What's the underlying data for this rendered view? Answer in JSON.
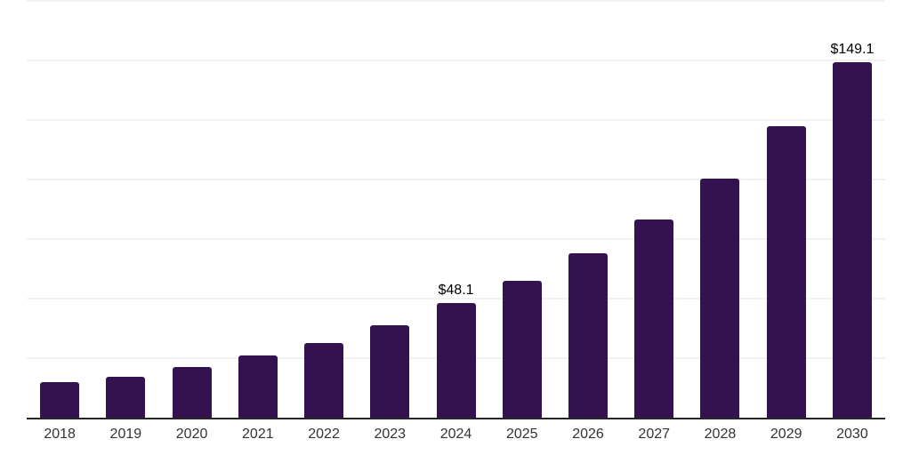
{
  "chart_data": {
    "type": "bar",
    "title": "",
    "xlabel": "",
    "ylabel": "",
    "categories": [
      "2018",
      "2019",
      "2020",
      "2021",
      "2022",
      "2023",
      "2024",
      "2025",
      "2026",
      "2027",
      "2028",
      "2029",
      "2030"
    ],
    "values": [
      14.9,
      17.3,
      21.3,
      26.1,
      31.4,
      38.9,
      48.1,
      57.5,
      69.1,
      83.2,
      100.4,
      122.4,
      149.1
    ],
    "data_labels": [
      "",
      "",
      "",
      "",
      "",
      "",
      "$48.1",
      "",
      "",
      "",
      "",
      "",
      "$149.1"
    ],
    "ylim": [
      0,
      175
    ],
    "gridline_step": 25,
    "grid": "horizontal",
    "legend": "none",
    "y_axis_tick_labels": "none",
    "bar_color": "#341250",
    "axis_line_color": "#262626",
    "gridline_color": "#f2f2f2",
    "data_label_color": "#000000",
    "tick_label_color": "#333333",
    "background_color": "#ffffff"
  }
}
